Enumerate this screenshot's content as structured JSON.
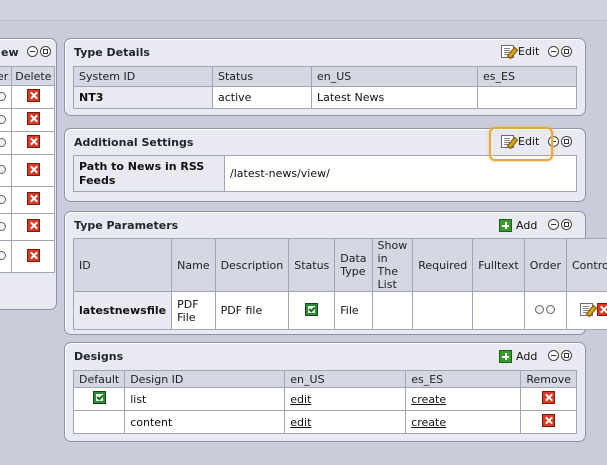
{
  "left_panel": {
    "title_fragment": "ew",
    "col_fragment": "er",
    "delete_header": "Delete",
    "rows": 7
  },
  "type_details": {
    "title": "Type Details",
    "edit_label": "Edit",
    "headers": [
      "System ID",
      "Status",
      "en_US",
      "es_ES"
    ],
    "row": [
      "NT3",
      "active",
      "Latest News",
      ""
    ]
  },
  "additional_settings": {
    "title": "Additional Settings",
    "edit_label": "Edit",
    "label": "Path to News in RSS Feeds",
    "value": "/latest-news/view/"
  },
  "type_parameters": {
    "title": "Type Parameters",
    "add_label": "Add",
    "headers": [
      "ID",
      "Name",
      "Description",
      "Status",
      "Data Type",
      "Show in The List",
      "Required",
      "Fulltext",
      "Order",
      "Controls"
    ],
    "row": {
      "id": "latestnewsfile",
      "name": "PDF File",
      "description": "PDF file",
      "data_type": "File",
      "status_checked": true
    }
  },
  "designs": {
    "title": "Designs",
    "add_label": "Add",
    "headers": [
      "Default",
      "Design ID",
      "en_US",
      "es_ES",
      "Remove"
    ],
    "rows": [
      {
        "default": true,
        "design_id": "list",
        "en_us": "edit",
        "es_es": "create"
      },
      {
        "default": false,
        "design_id": "content",
        "en_us": "edit",
        "es_es": "create"
      }
    ]
  },
  "colors": {
    "panel_bg": "#e9eaf1",
    "highlight": "#eaa63a",
    "accent_green": "#3a9a2e",
    "delete_red": "#d83a24"
  }
}
